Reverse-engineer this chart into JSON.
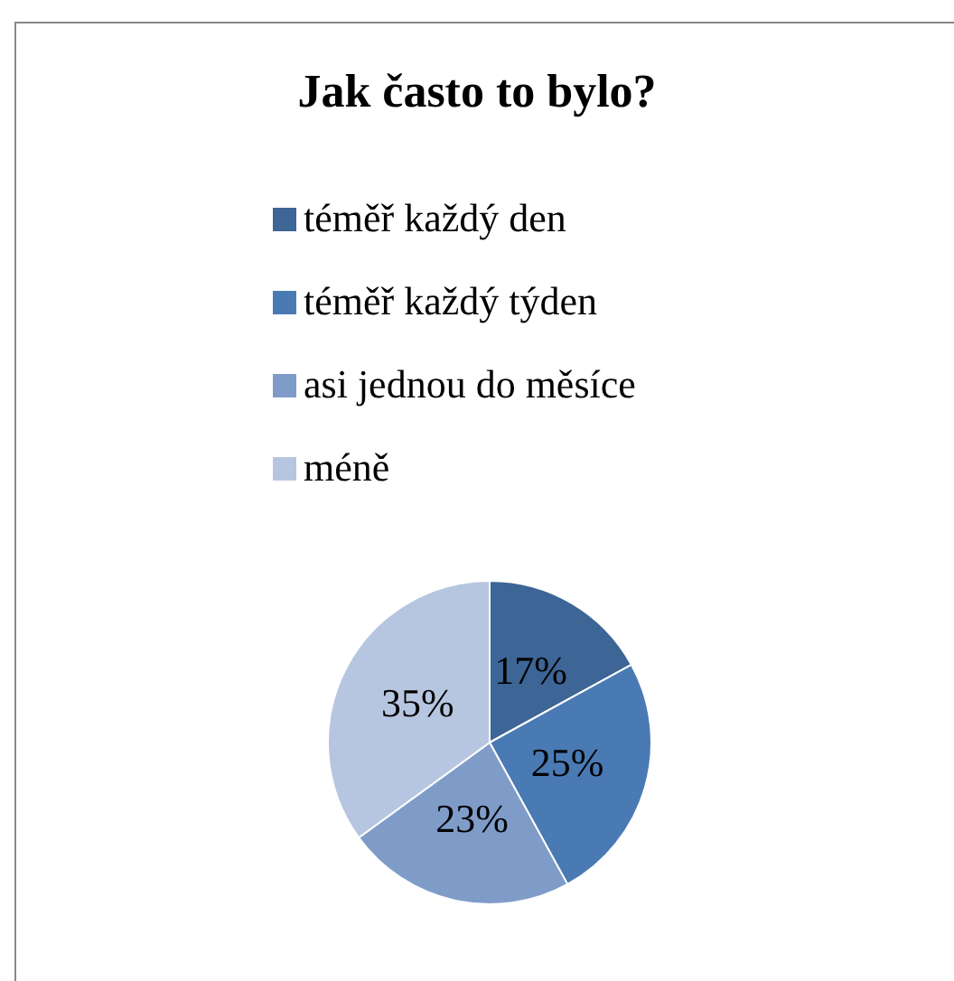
{
  "chart_data": {
    "type": "pie",
    "title": "Jak často to bylo?",
    "categories": [
      "téměř každý den",
      "téměř každý týden",
      "asi jednou do měsíce",
      "méně"
    ],
    "values": [
      17,
      25,
      23,
      35
    ],
    "colors": [
      "#3d6596",
      "#4a7ab4",
      "#7f9cc9",
      "#b7c6e0"
    ],
    "value_labels": [
      "17%",
      "25%",
      "23%",
      "35%"
    ],
    "legend": "top"
  }
}
